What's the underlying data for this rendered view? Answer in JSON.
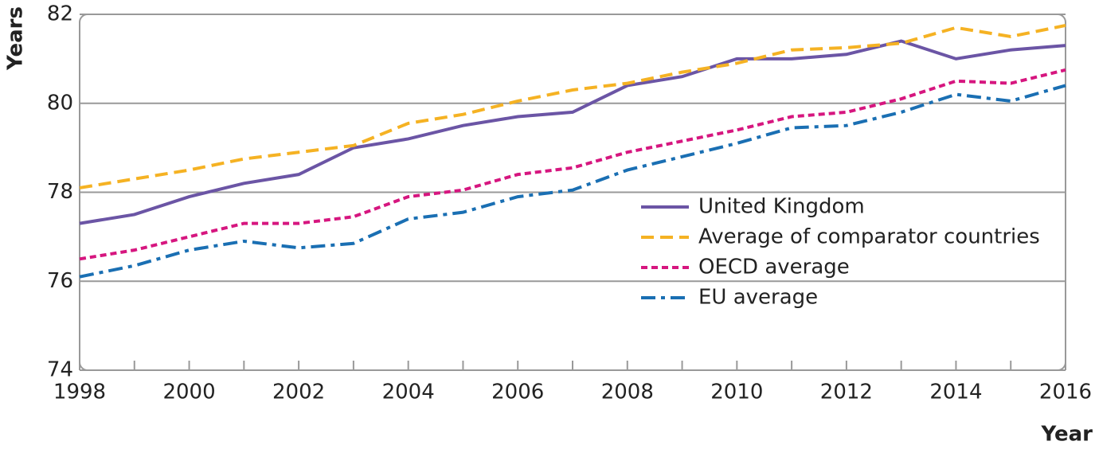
{
  "chart_data": {
    "type": "line",
    "y_label": "Years",
    "x_label": "Year",
    "x": [
      1998,
      1999,
      2000,
      2001,
      2002,
      2003,
      2004,
      2005,
      2006,
      2007,
      2008,
      2009,
      2010,
      2011,
      2012,
      2013,
      2014,
      2015,
      2016
    ],
    "series": [
      {
        "name": "United Kingdom",
        "color": "#6b55a5",
        "dash": "solid",
        "values": [
          77.3,
          77.5,
          77.9,
          78.2,
          78.4,
          79.0,
          79.2,
          79.5,
          79.7,
          79.8,
          80.4,
          80.6,
          81.0,
          81.0,
          81.1,
          81.4,
          81.0,
          81.2,
          81.3
        ]
      },
      {
        "name": "Average of comparator countries",
        "color": "#f5b223",
        "dash": "dashed",
        "values": [
          78.1,
          78.3,
          78.5,
          78.75,
          78.9,
          79.05,
          79.55,
          79.75,
          80.05,
          80.3,
          80.45,
          80.7,
          80.9,
          81.2,
          81.25,
          81.35,
          81.7,
          81.5,
          81.75
        ]
      },
      {
        "name": "OECD average",
        "color": "#d6167f",
        "dash": "dotted",
        "values": [
          76.5,
          76.7,
          77.0,
          77.3,
          77.3,
          77.45,
          77.9,
          78.05,
          78.4,
          78.55,
          78.9,
          79.15,
          79.4,
          79.7,
          79.8,
          80.1,
          80.5,
          80.45,
          80.75
        ]
      },
      {
        "name": "EU average",
        "color": "#1a6fb3",
        "dash": "dashdot",
        "values": [
          76.1,
          76.35,
          76.7,
          76.9,
          76.75,
          76.85,
          77.4,
          77.55,
          77.9,
          78.05,
          78.5,
          78.8,
          79.1,
          79.45,
          79.5,
          79.8,
          80.2,
          80.05,
          80.4
        ]
      }
    ],
    "xlim": [
      1998,
      2016
    ],
    "xticks": [
      1998,
      2000,
      2002,
      2004,
      2006,
      2008,
      2010,
      2012,
      2014,
      2016
    ],
    "xticks_minor": [
      1999,
      2001,
      2003,
      2005,
      2007,
      2009,
      2011,
      2013,
      2015
    ],
    "ylim": [
      74,
      82
    ],
    "yticks": [
      74,
      76,
      78,
      80,
      82
    ],
    "grid": true,
    "legend": "center-right"
  }
}
